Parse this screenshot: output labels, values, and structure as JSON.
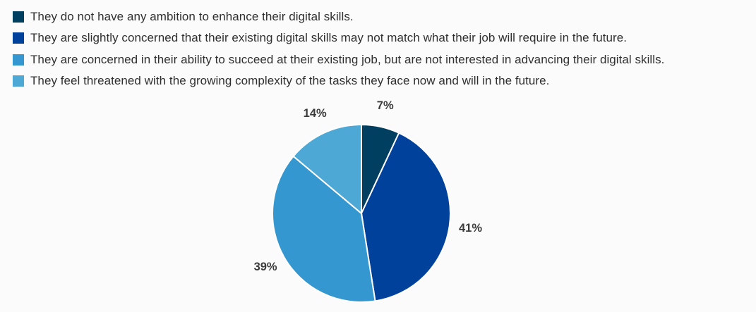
{
  "chart_data": {
    "type": "pie",
    "start_angle_deg": 0,
    "direction": "clockwise",
    "slices": [
      {
        "label": "They do not have any ambition to enhance their digital skills.",
        "value": 7,
        "value_label": "7%",
        "color": "#003f5f"
      },
      {
        "label": "They are slightly concerned that their existing digital skills may not match what their job will require in the future.",
        "value": 41,
        "value_label": "41%",
        "color": "#00419b"
      },
      {
        "label": "They are concerned in their ability to succeed at their existing job, but are not interested in advancing their digital skills.",
        "value": 39,
        "value_label": "39%",
        "color": "#3597cf"
      },
      {
        "label": "They feel threatened with the growing complexity of the tasks they face now and will in the future.",
        "value": 14,
        "value_label": "14%",
        "color": "#4da8d6"
      }
    ],
    "legend_placement": "top-left"
  }
}
